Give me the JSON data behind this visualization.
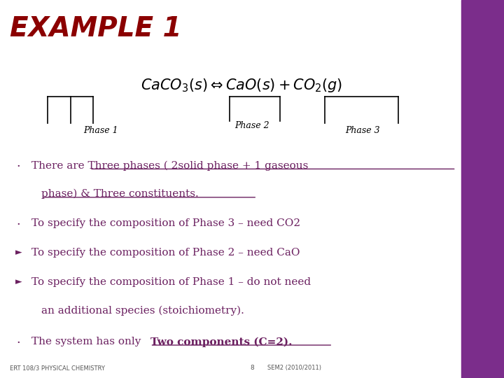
{
  "title": "EXAMPLE 1",
  "title_color": "#8B0000",
  "title_fontsize": 28,
  "bg_color": "#FFFFFF",
  "right_bar_color": "#7B2D8B",
  "phase_labels": [
    "Phase 1",
    "Phase 2",
    "Phase 3"
  ],
  "footer_left": "ERT 108/3 PHYSICAL CHEMISTRY",
  "footer_center": "8",
  "footer_right": "SEM2 (2010/2011)",
  "text_color": "#6B2060",
  "footer_color": "#555555"
}
